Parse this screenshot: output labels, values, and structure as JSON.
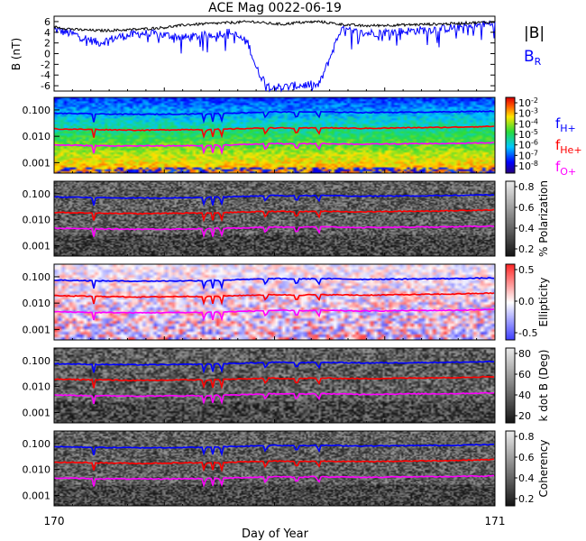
{
  "title": "ACE Mag 0022-06-19",
  "xlabel": "Day of Year",
  "x_ticks": [
    "170",
    "171"
  ],
  "freq_ticks": [
    "0.100",
    "0.010",
    "0.001"
  ],
  "legend_top": {
    "b": "|B|",
    "br_main": "B",
    "br_sub": "R"
  },
  "gyro_legend": [
    {
      "main": "f",
      "sub": "H+",
      "color": "#0000ff"
    },
    {
      "main": "f",
      "sub": "He+",
      "color": "#ff0000"
    },
    {
      "main": "f",
      "sub": "O+",
      "color": "#ff00ff"
    }
  ],
  "colors": {
    "b": "#000000",
    "br": "#0000ff",
    "h": "#0000ff",
    "he": "#ff0000",
    "o": "#ff00ff"
  },
  "chart_data": [
    {
      "type": "line",
      "panel": "magnetic-field",
      "ylabel": "B (nT)",
      "ylim": [
        -7,
        7
      ],
      "y_ticks": [
        "6",
        "4",
        "2",
        "0",
        "-2",
        "-4",
        "-6"
      ],
      "xlim": [
        170,
        171
      ],
      "series": [
        {
          "name": "|B|",
          "x": [
            170.0,
            170.05,
            170.1,
            170.15,
            170.2,
            170.25,
            170.3,
            170.35,
            170.4,
            170.45,
            170.48,
            170.52,
            170.55,
            170.58,
            170.6,
            170.65,
            170.7,
            170.75,
            170.8,
            170.85,
            170.9,
            170.95,
            171.0
          ],
          "y": [
            5.0,
            4.5,
            4.3,
            4.4,
            4.6,
            4.9,
            5.4,
            5.6,
            5.8,
            6.0,
            5.7,
            5.5,
            5.8,
            5.9,
            6.0,
            5.5,
            5.2,
            5.3,
            5.4,
            5.5,
            5.6,
            5.8,
            5.9
          ]
        },
        {
          "name": "B_R",
          "x": [
            170.0,
            170.05,
            170.1,
            170.15,
            170.2,
            170.25,
            170.3,
            170.35,
            170.4,
            170.44,
            170.46,
            170.48,
            170.5,
            170.52,
            170.55,
            170.58,
            170.6,
            170.62,
            170.65,
            170.7,
            170.75,
            170.8,
            170.85,
            170.9,
            170.95,
            171.0
          ],
          "y": [
            4.5,
            3.5,
            2.0,
            3.2,
            3.8,
            3.5,
            3.0,
            3.5,
            4.0,
            2.0,
            -3.0,
            -5.5,
            -6.2,
            -6.3,
            -6.0,
            -5.8,
            -6.0,
            -2.0,
            4.5,
            3.8,
            4.0,
            4.2,
            4.5,
            4.8,
            5.2,
            5.7
          ]
        }
      ]
    },
    {
      "type": "heatmap",
      "panel": "power-spectrum",
      "ylim": [
        0.0004,
        0.3
      ],
      "colorbar_ticks": [
        "10^-2",
        "10^-3",
        "10^-4",
        "10^-5",
        "10^-6",
        "10^-7",
        "10^-8"
      ],
      "series_ref": "gyrofrequencies"
    },
    {
      "type": "heatmap",
      "panel": "polarization",
      "colorbar_label": "% Polarization",
      "colorbar_ticks": [
        "0.8",
        "0.6",
        "0.4",
        "0.2"
      ],
      "series_ref": "gyrofrequencies"
    },
    {
      "type": "heatmap",
      "panel": "ellipticity",
      "colorbar_label": "Ellipticity",
      "colorbar_ticks": [
        "0.5",
        "0.0",
        "-0.5"
      ],
      "series_ref": "gyrofrequencies"
    },
    {
      "type": "heatmap",
      "panel": "k-dot-b",
      "colorbar_label": "k dot B (Deg)",
      "colorbar_ticks": [
        "80",
        "60",
        "40",
        "20"
      ],
      "series_ref": "gyrofrequencies"
    },
    {
      "type": "heatmap",
      "panel": "coherency",
      "colorbar_label": "Coherency",
      "colorbar_ticks": [
        "0.8",
        "0.6",
        "0.4",
        "0.2"
      ],
      "series_ref": "gyrofrequencies"
    }
  ],
  "gyrofrequencies": {
    "x": [
      170.0,
      170.1,
      170.2,
      170.3,
      170.35,
      170.4,
      170.45,
      170.5,
      170.55,
      170.6,
      170.7,
      170.8,
      170.9,
      171.0
    ],
    "h": [
      0.075,
      0.07,
      0.068,
      0.07,
      0.072,
      0.076,
      0.08,
      0.085,
      0.082,
      0.085,
      0.08,
      0.082,
      0.085,
      0.09
    ],
    "he": [
      0.019,
      0.018,
      0.017,
      0.018,
      0.018,
      0.019,
      0.02,
      0.021,
      0.02,
      0.021,
      0.02,
      0.021,
      0.022,
      0.024
    ],
    "o": [
      0.0047,
      0.0044,
      0.0043,
      0.0044,
      0.0045,
      0.0047,
      0.005,
      0.0053,
      0.0051,
      0.0053,
      0.005,
      0.0052,
      0.0053,
      0.0057
    ],
    "dips": [
      170.09,
      170.34,
      170.36,
      170.38,
      170.48,
      170.55,
      170.6
    ]
  }
}
